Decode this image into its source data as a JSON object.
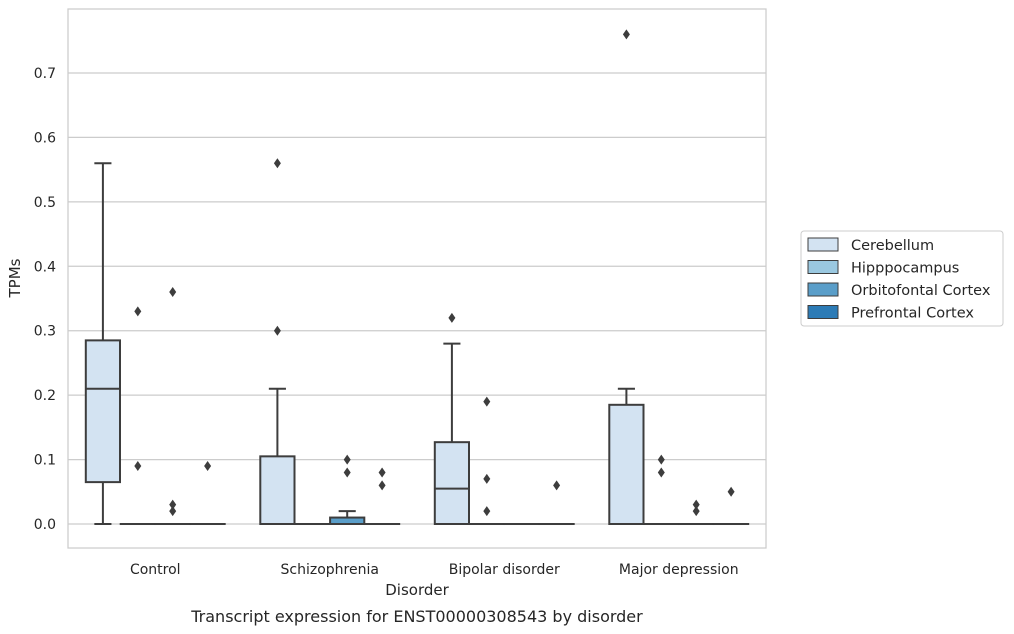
{
  "caption": "Transcript expression for ENST00000308543 by disorder",
  "chart_data": {
    "type": "box",
    "xlabel": "Disorder",
    "ylabel": "TPMs",
    "ylim": [
      -0.038,
      0.8
    ],
    "yticks": [
      0.0,
      0.1,
      0.2,
      0.3,
      0.4,
      0.5,
      0.6,
      0.7
    ],
    "yticklabels": [
      "0.0",
      "0.1",
      "0.2",
      "0.3",
      "0.4",
      "0.5",
      "0.6",
      "0.7"
    ],
    "grid": "horizontal",
    "legend_placement": "right-center",
    "categories": [
      "Control",
      "Schizophrenia",
      "Bipolar disorder",
      "Major depression"
    ],
    "series": [
      {
        "name": "Cerebellum",
        "color": "#d3e3f2",
        "boxes": [
          {
            "whislo": 0.0,
            "q1": 0.065,
            "med": 0.21,
            "q3": 0.285,
            "whishi": 0.56,
            "fliers": []
          },
          {
            "whislo": 0.0,
            "q1": 0.0,
            "med": 0.0,
            "q3": 0.105,
            "whishi": 0.21,
            "fliers": [
              0.3,
              0.56
            ]
          },
          {
            "whislo": 0.0,
            "q1": 0.0,
            "med": 0.055,
            "q3": 0.127,
            "whishi": 0.28,
            "fliers": [
              0.32
            ]
          },
          {
            "whislo": 0.0,
            "q1": 0.0,
            "med": 0.0,
            "q3": 0.185,
            "whishi": 0.21,
            "fliers": [
              0.76
            ]
          }
        ]
      },
      {
        "name": "Hipppocampus",
        "color": "#9ac8e0",
        "boxes": [
          {
            "whislo": 0.0,
            "q1": 0.0,
            "med": 0.0,
            "q3": 0.0,
            "whishi": 0.0,
            "fliers": [
              0.09,
              0.33
            ]
          },
          {
            "whislo": 0.0,
            "q1": 0.0,
            "med": 0.0,
            "q3": 0.0,
            "whishi": 0.0,
            "fliers": []
          },
          {
            "whislo": 0.0,
            "q1": 0.0,
            "med": 0.0,
            "q3": 0.0,
            "whishi": 0.0,
            "fliers": [
              0.02,
              0.07,
              0.19
            ]
          },
          {
            "whislo": 0.0,
            "q1": 0.0,
            "med": 0.0,
            "q3": 0.0,
            "whishi": 0.0,
            "fliers": [
              0.08,
              0.1
            ]
          }
        ]
      },
      {
        "name": "Orbitofontal Cortex",
        "color": "#5a9ec9",
        "boxes": [
          {
            "whislo": 0.0,
            "q1": 0.0,
            "med": 0.0,
            "q3": 0.0,
            "whishi": 0.0,
            "fliers": [
              0.02,
              0.03,
              0.36
            ]
          },
          {
            "whislo": 0.0,
            "q1": 0.0,
            "med": 0.0,
            "q3": 0.01,
            "whishi": 0.02,
            "fliers": [
              0.08,
              0.1
            ]
          },
          {
            "whislo": 0.0,
            "q1": 0.0,
            "med": 0.0,
            "q3": 0.0,
            "whishi": 0.0,
            "fliers": []
          },
          {
            "whislo": 0.0,
            "q1": 0.0,
            "med": 0.0,
            "q3": 0.0,
            "whishi": 0.0,
            "fliers": [
              0.02,
              0.03
            ]
          }
        ]
      },
      {
        "name": "Prefrontal Cortex",
        "color": "#2c7bb6",
        "boxes": [
          {
            "whislo": 0.0,
            "q1": 0.0,
            "med": 0.0,
            "q3": 0.0,
            "whishi": 0.0,
            "fliers": [
              0.09
            ]
          },
          {
            "whislo": 0.0,
            "q1": 0.0,
            "med": 0.0,
            "q3": 0.0,
            "whishi": 0.0,
            "fliers": [
              0.06,
              0.08
            ]
          },
          {
            "whislo": 0.0,
            "q1": 0.0,
            "med": 0.0,
            "q3": 0.0,
            "whishi": 0.0,
            "fliers": [
              0.06
            ]
          },
          {
            "whislo": 0.0,
            "q1": 0.0,
            "med": 0.0,
            "q3": 0.0,
            "whishi": 0.0,
            "fliers": [
              0.05
            ]
          }
        ]
      }
    ]
  }
}
